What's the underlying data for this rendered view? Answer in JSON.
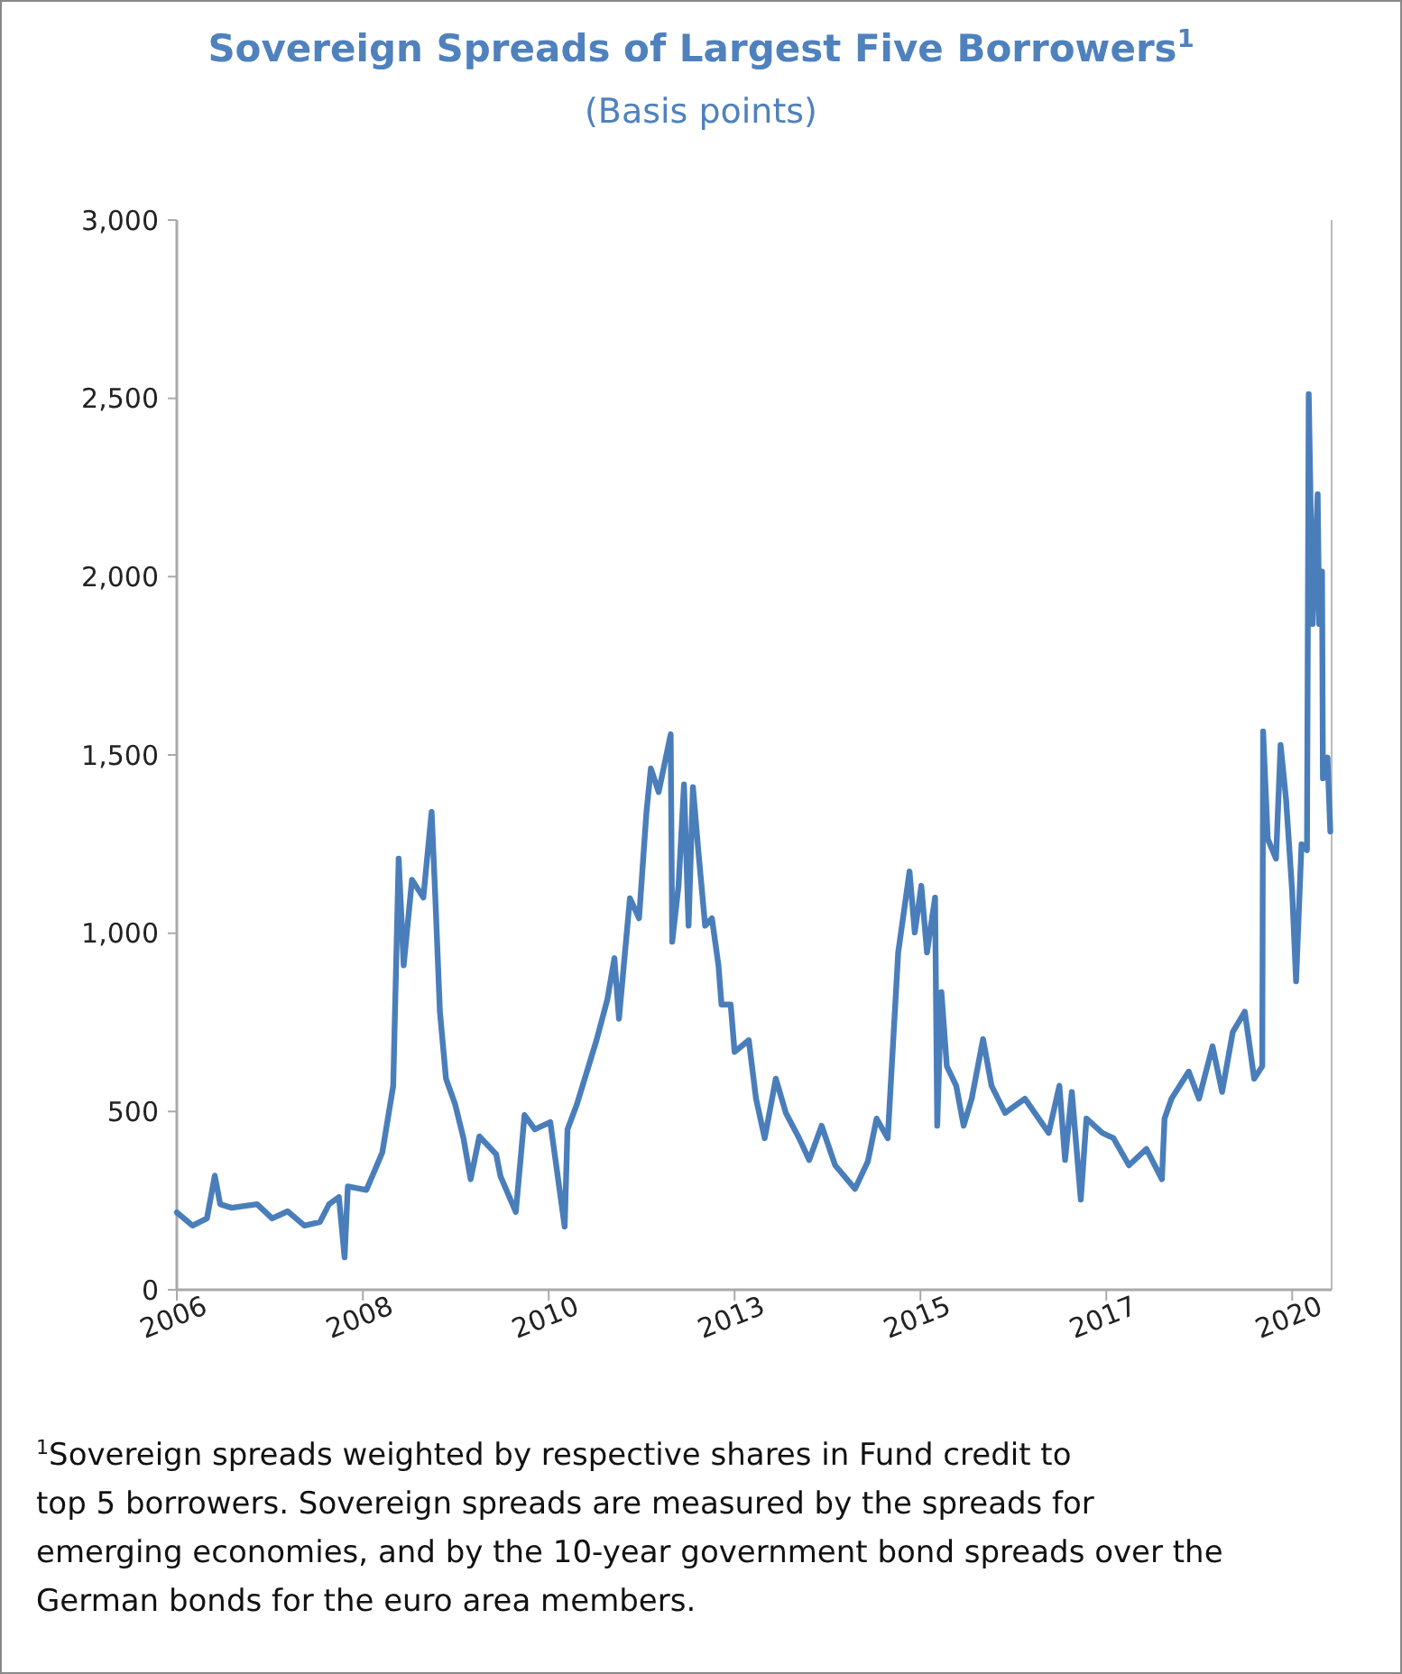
{
  "chart_data": {
    "type": "line",
    "title": "Sovereign Spreads of Largest Five Borrowers$^{1}$",
    "subtitle": "(Basis points)",
    "annotations": [
      "$^{1}$Sovereign spreads weighted by respective shares in Fund credit to top 5 borrowers. Sovereign spreads are measured by the spreads for emerging economies, and by the 10-year government bond spreads over the German bonds for the euro area members."
    ],
    "xlim": [
      "2006-01-02",
      "2020-07-01"
    ],
    "xticks": [
      {
        "value": "2006-01-02",
        "label": "2006"
      },
      {
        "value": "2008-05-04",
        "label": "2008"
      },
      {
        "value": "2010-09-03",
        "label": "2010"
      },
      {
        "value": "2013-01-02",
        "label": "2013"
      },
      {
        "value": "2015-05-04",
        "label": "2015"
      },
      {
        "value": "2017-09-02",
        "label": "2017"
      },
      {
        "value": "2020-01-02",
        "label": "2020"
      }
    ],
    "ylim": [
      0,
      3000
    ],
    "yticks": [
      0,
      500,
      {
        "value": 1000,
        "label": "1,000"
      },
      {
        "value": 1500,
        "label": "1,500"
      },
      {
        "value": 2000,
        "label": "2,000"
      },
      {
        "value": 2500,
        "label": "2,500"
      },
      {
        "value": 3000,
        "label": "3,000"
      }
    ],
    "grid": false,
    "marker": "none",
    "line_style": "solid",
    "x": [
      "2006-01-02",
      "2006-03-15",
      "2006-05-20",
      "2006-06-25",
      "2006-07-20",
      "2006-09-10",
      "2007-01-05",
      "2007-03-15",
      "2007-05-25",
      "2007-08-10",
      "2007-10-20",
      "2007-12-01",
      "2008-01-15",
      "2008-02-10",
      "2008-02-25",
      "2008-05-20",
      "2008-07-01",
      "2008-08-01",
      "2008-09-20",
      "2008-10-15",
      "2008-11-07",
      "2008-12-15",
      "2009-02-05",
      "2009-03-15",
      "2009-04-01",
      "2009-04-22",
      "2009-05-20",
      "2009-07-01",
      "2009-08-08",
      "2009-09-10",
      "2009-10-20",
      "2010-01-05",
      "2010-01-25",
      "2010-04-05",
      "2010-05-15",
      "2010-07-01",
      "2010-09-10",
      "2010-11-15",
      "2010-11-28",
      "2011-01-10",
      "2011-04-10",
      "2011-05-30",
      "2011-07-01",
      "2011-07-22",
      "2011-09-10",
      "2011-10-22",
      "2011-11-25",
      "2011-12-15",
      "2012-01-20",
      "2012-03-15",
      "2012-03-22",
      "2012-04-20",
      "2012-05-15",
      "2012-06-05",
      "2012-06-25",
      "2012-07-20",
      "2012-08-20",
      "2012-09-20",
      "2012-10-20",
      "2012-11-03",
      "2012-12-15",
      "2013-01-02",
      "2013-03-08",
      "2013-04-10",
      "2013-05-20",
      "2013-07-10",
      "2013-08-25",
      "2013-10-25",
      "2013-12-10",
      "2014-02-05",
      "2014-04-08",
      "2014-07-08",
      "2014-09-05",
      "2014-10-15",
      "2014-12-05",
      "2015-01-22",
      "2015-03-15",
      "2015-04-08",
      "2015-05-08",
      "2015-06-03",
      "2015-07-10",
      "2015-07-20",
      "2015-08-08",
      "2015-09-02",
      "2015-10-15",
      "2015-11-18",
      "2015-12-25",
      "2016-02-15",
      "2016-03-25",
      "2016-05-26",
      "2016-08-25",
      "2016-12-12",
      "2017-01-30",
      "2017-02-25",
      "2017-03-28",
      "2017-05-08",
      "2017-06-03",
      "2017-08-15",
      "2017-10-05",
      "2017-12-15",
      "2018-03-05",
      "2018-05-15",
      "2018-05-27",
      "2018-06-28",
      "2018-09-15",
      "2018-11-01",
      "2019-01-02",
      "2019-02-15",
      "2019-04-05",
      "2019-05-30",
      "2019-07-12",
      "2019-08-18",
      "2019-08-22",
      "2019-09-12",
      "2019-10-20",
      "2019-11-10",
      "2019-12-05",
      "2020-01-02",
      "2020-01-20",
      "2020-02-14",
      "2020-03-10",
      "2020-03-18",
      "2020-04-05",
      "2020-04-28",
      "2020-05-05",
      "2020-05-18",
      "2020-05-22",
      "2020-06-12",
      "2020-06-25"
    ],
    "series": [
      {
        "color": "#4a7ebb",
        "values": [
          217,
          180,
          200,
          320,
          240,
          230,
          240,
          200,
          220,
          180,
          190,
          240,
          260,
          91,
          290,
          280,
          340,
          385,
          572,
          1209,
          910,
          1150,
          1100,
          1340,
          1100,
          780,
          592,
          520,
          425,
          310,
          430,
          380,
          318,
          218,
          490,
          450,
          470,
          177,
          450,
          520,
          700,
          815,
          930,
          760,
          1098,
          1042,
          1340,
          1462,
          1396,
          1558,
          976,
          1133,
          1417,
          1021,
          1410,
          1229,
          1021,
          1042,
          910,
          800,
          800,
          667,
          700,
          537,
          425,
          592,
          496,
          425,
          364,
          460,
          349,
          283,
          360,
          480,
          425,
          946,
          1173,
          1002,
          1133,
          946,
          1100,
          460,
          835,
          627,
          572,
          460,
          536,
          703,
          572,
          496,
          536,
          440,
          572,
          364,
          555,
          253,
          480,
          440,
          425,
          349,
          395,
          310,
          480,
          536,
          612,
          536,
          683,
          555,
          723,
          780,
          592,
          627,
          1566,
          1265,
          1209,
          1528,
          1376,
          1118,
          865,
          1250,
          1233,
          2512,
          1867,
          2231,
          1867,
          2014,
          1434,
          1493,
          1285
        ]
      }
    ]
  }
}
